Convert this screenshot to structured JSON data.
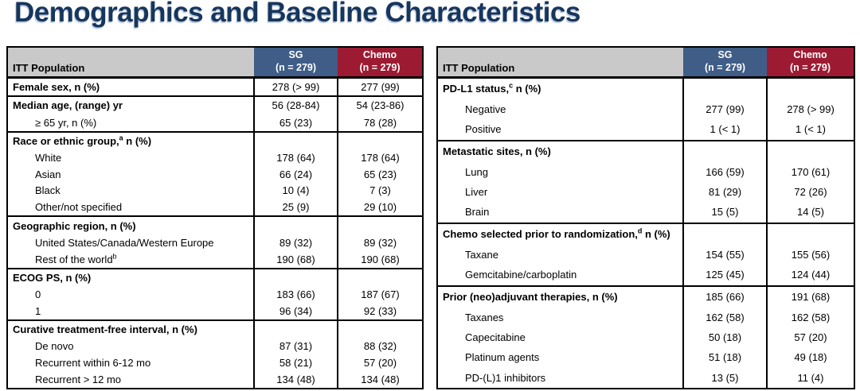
{
  "title": "Demographics and Baseline Characteristics",
  "colors": {
    "title_navy": "#17365D",
    "header_gray": "#C9C9C9",
    "header_blue": "#3F5D87",
    "header_red": "#9D1B32",
    "border": "#000000"
  },
  "tables": [
    {
      "header": {
        "population": "ITT Population",
        "sg": "SG",
        "sg_n": "(n = 279)",
        "chemo": "Chemo",
        "chemo_n": "(n = 279)"
      },
      "rows": [
        {
          "kind": "group",
          "label": "Female sex, n (%)",
          "sg": "278 (> 99)",
          "ch": "277 (99)",
          "section": true
        },
        {
          "kind": "group",
          "label": "Median age, (range) yr",
          "sg": "56 (28-84)",
          "ch": "54 (23-86)",
          "section": true
        },
        {
          "kind": "sub",
          "label": "≥ 65 yr, n (%)",
          "sg": "65 (23)",
          "ch": "78 (28)"
        },
        {
          "kind": "group",
          "label": "Race or ethnic group,",
          "sup": "a",
          "post": " n (%)",
          "sg": "",
          "ch": "",
          "section": true
        },
        {
          "kind": "sub",
          "label": "White",
          "sg": "178 (64)",
          "ch": "178 (64)"
        },
        {
          "kind": "sub",
          "label": "Asian",
          "sg": "66 (24)",
          "ch": "65 (23)"
        },
        {
          "kind": "sub",
          "label": "Black",
          "sg": "10 (4)",
          "ch": "7 (3)"
        },
        {
          "kind": "sub",
          "label": "Other/not specified",
          "sg": "25 (9)",
          "ch": "29 (10)"
        },
        {
          "kind": "group",
          "label": "Geographic region, n (%)",
          "sg": "",
          "ch": "",
          "section": true
        },
        {
          "kind": "sub",
          "label": "United States/Canada/Western Europe",
          "sg": "89 (32)",
          "ch": "89 (32)"
        },
        {
          "kind": "sub",
          "label": "Rest of the world",
          "sup": "b",
          "sg": "190 (68)",
          "ch": "190 (68)"
        },
        {
          "kind": "group",
          "label": "ECOG PS, n (%)",
          "sg": "",
          "ch": "",
          "section": true
        },
        {
          "kind": "sub",
          "label": "0",
          "sg": "183 (66)",
          "ch": "187 (67)"
        },
        {
          "kind": "sub",
          "label": "1",
          "sg": "96 (34)",
          "ch": "92 (33)"
        },
        {
          "kind": "group",
          "label": "Curative treatment-free interval, n (%)",
          "sg": "",
          "ch": "",
          "section": true
        },
        {
          "kind": "sub",
          "label": "De novo",
          "sg": "87 (31)",
          "ch": "88 (32)"
        },
        {
          "kind": "sub",
          "label": "Recurrent within 6-12 mo",
          "sg": "58 (21)",
          "ch": "57 (20)"
        },
        {
          "kind": "sub",
          "label": "Recurrent > 12 mo",
          "sg": "134 (48)",
          "ch": "134 (48)"
        }
      ]
    },
    {
      "header": {
        "population": "ITT Population",
        "sg": "SG",
        "sg_n": "(n = 279)",
        "chemo": "Chemo",
        "chemo_n": "(n = 279)"
      },
      "rows": [
        {
          "kind": "group",
          "label": "PD-L1 status,",
          "sup": "c",
          "post": " n (%)",
          "sg": "",
          "ch": "",
          "section": true
        },
        {
          "kind": "sub",
          "label": "Negative",
          "sg": "277 (99)",
          "ch": "278 (> 99)"
        },
        {
          "kind": "sub",
          "label": "Positive",
          "sg": "1 (< 1)",
          "ch": "1 (< 1)"
        },
        {
          "kind": "group",
          "label": "Metastatic sites, n (%)",
          "sg": "",
          "ch": "",
          "section": true
        },
        {
          "kind": "sub",
          "label": "Lung",
          "sg": "166 (59)",
          "ch": "170 (61)"
        },
        {
          "kind": "sub",
          "label": "Liver",
          "sg": "81 (29)",
          "ch": "72 (26)"
        },
        {
          "kind": "sub",
          "label": "Brain",
          "sg": "15 (5)",
          "ch": "14 (5)"
        },
        {
          "kind": "group",
          "label": "Chemo selected prior to randomization,",
          "sup": "d",
          "post": " n (%)",
          "sg": "",
          "ch": "",
          "section": true
        },
        {
          "kind": "sub",
          "label": "Taxane",
          "sg": "154 (55)",
          "ch": "155 (56)"
        },
        {
          "kind": "sub",
          "label": "Gemcitabine/carboplatin",
          "sg": "125 (45)",
          "ch": "124 (44)"
        },
        {
          "kind": "group",
          "label": "Prior (neo)adjuvant therapies, n (%)",
          "sg": "185 (66)",
          "ch": "191 (68)",
          "section": true
        },
        {
          "kind": "sub",
          "label": "Taxanes",
          "sg": "162 (58)",
          "ch": "162 (58)"
        },
        {
          "kind": "sub",
          "label": "Capecitabine",
          "sg": "50 (18)",
          "ch": "57 (20)"
        },
        {
          "kind": "sub",
          "label": "Platinum agents",
          "sg": "51 (18)",
          "ch": "49 (18)"
        },
        {
          "kind": "sub",
          "label": "PD-(L)1 inhibitors",
          "sg": "13 (5)",
          "ch": "11 (4)"
        }
      ]
    }
  ]
}
